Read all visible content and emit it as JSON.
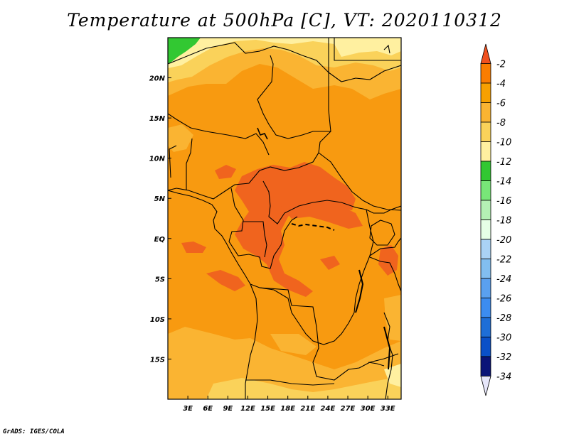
{
  "title": "Temperature at 500hPa [C], VT: 2020110312",
  "credit": "GrADS: IGES/COLA",
  "map": {
    "lon_range": [
      0,
      35
    ],
    "lat_range": [
      -20,
      25
    ],
    "lon_ticks": [
      {
        "value": 3,
        "label": "3E"
      },
      {
        "value": 6,
        "label": "6E"
      },
      {
        "value": 9,
        "label": "9E"
      },
      {
        "value": 12,
        "label": "12E"
      },
      {
        "value": 15,
        "label": "15E"
      },
      {
        "value": 18,
        "label": "18E"
      },
      {
        "value": 21,
        "label": "21E"
      },
      {
        "value": 24,
        "label": "24E"
      },
      {
        "value": 27,
        "label": "27E"
      },
      {
        "value": 30,
        "label": "30E"
      },
      {
        "value": 33,
        "label": "33E"
      }
    ],
    "lat_ticks": [
      {
        "value": 20,
        "label": "20N"
      },
      {
        "value": 15,
        "label": "15N"
      },
      {
        "value": 10,
        "label": "10N"
      },
      {
        "value": 5,
        "label": "5N"
      },
      {
        "value": 0,
        "label": "EQ"
      },
      {
        "value": -5,
        "label": "5S"
      },
      {
        "value": -10,
        "label": "10S"
      },
      {
        "value": -15,
        "label": "15S"
      }
    ]
  },
  "colorbar": {
    "levels": [
      "-2",
      "-4",
      "-6",
      "-8",
      "-10",
      "-12",
      "-14",
      "-16",
      "-18",
      "-20",
      "-22",
      "-24",
      "-26",
      "-28",
      "-30",
      "-32",
      "-34"
    ],
    "colors": [
      "#f0501e",
      "#fa7d00",
      "#f7a000",
      "#fab432",
      "#fad25a",
      "#fff0a0",
      "#32c832",
      "#78e678",
      "#b4f0b4",
      "#e6ffe6",
      "#aad2f5",
      "#82bef0",
      "#5aa0ef",
      "#3c8cf0",
      "#1e6ed7",
      "#0a50c8",
      "#0a1478",
      "#e6e6fa"
    ]
  },
  "palette": {
    "t_minus_2_to_minus_4": "#f0641e",
    "t_minus_4_to_minus_6": "#f89a10",
    "t_minus_6_to_minus_8": "#fab432",
    "t_minus_8_to_minus_10": "#fad25a",
    "t_minus_10_to_minus_12": "#fff0a0",
    "t_minus_12_to_minus_14": "#32c832",
    "t_minus_14_to_minus_16": "#78e678"
  }
}
